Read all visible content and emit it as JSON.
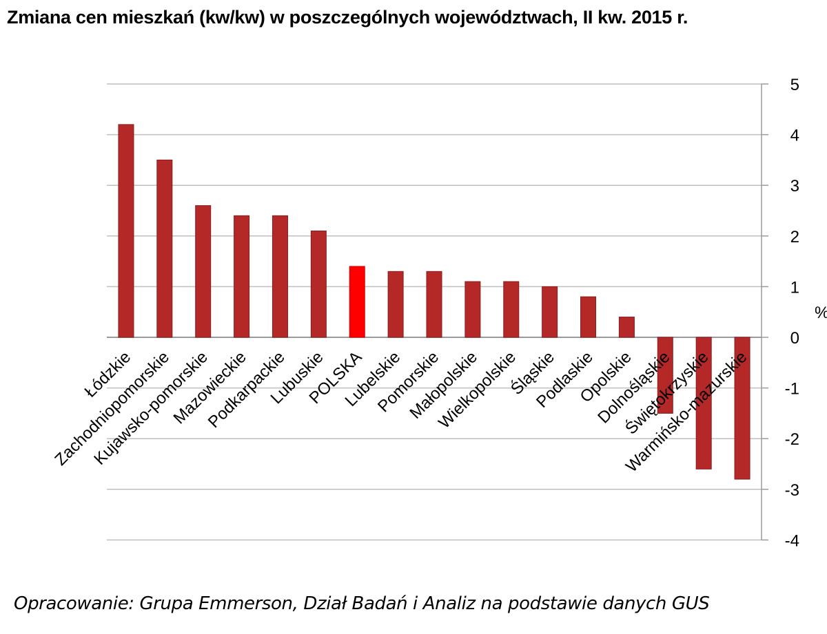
{
  "title": "Zmiana cen mieszkań (kw/kw) w poszczególnych województwach, II kw. 2015 r.",
  "footer": "Opracowanie: Grupa Emmerson, Dział Badań i Analiz na podstawie danych GUS",
  "colors": {
    "bar": "#b42828",
    "highlight": "#ff0000",
    "grid": "#bfbfbf"
  },
  "chart_data": {
    "type": "bar",
    "title": "Zmiana cen mieszkań (kw/kw) w poszczególnych województwach, II kw. 2015 r.",
    "xlabel": "",
    "ylabel": "%",
    "ylim": [
      -4,
      5
    ],
    "yticks": [
      5,
      4,
      3,
      2,
      1,
      0,
      -1,
      -2,
      -3,
      -4
    ],
    "grid": true,
    "highlight": "POLSKA",
    "categories": [
      "Łódzkie",
      "Zachodniopomorskie",
      "Kujawsko-pomorskie",
      "Mazowieckie",
      "Podkarpackie",
      "Lubuskie",
      "POLSKA",
      "Lubelskie",
      "Pomorskie",
      "Małopolskie",
      "Wielkopolskie",
      "Śląskie",
      "Podlaskie",
      "Opolskie",
      "Dolnośląskie",
      "Świętokrzyskie",
      "Warmińsko-mazurskie"
    ],
    "values": [
      4.2,
      3.5,
      2.6,
      2.4,
      2.4,
      2.1,
      1.4,
      1.3,
      1.3,
      1.1,
      1.1,
      1.0,
      0.8,
      0.4,
      -1.5,
      -2.6,
      -2.8
    ]
  }
}
